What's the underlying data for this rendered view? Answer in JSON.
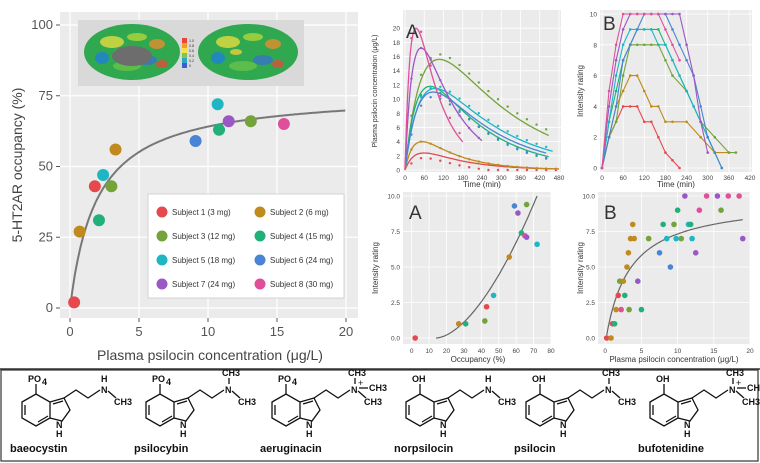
{
  "chart_data": [
    {
      "type": "scatter",
      "panel": "main",
      "xlabel": "Plasma psilocin concentration (μg/L)",
      "ylabel": "5-HT2AR occupancy (%)",
      "xlim": [
        0,
        20
      ],
      "ylim": [
        0,
        100
      ],
      "xticks": [
        0,
        5,
        10,
        15,
        20
      ],
      "yticks": [
        0,
        25,
        50,
        75,
        100
      ],
      "grid": true,
      "legend_position": "bottom-right",
      "series": [
        {
          "name": "Subject 1 (3 mg)",
          "color": "#e5484d",
          "points": [
            [
              0.3,
              2
            ],
            [
              1.8,
              43
            ]
          ]
        },
        {
          "name": "Subject 2 (6 mg)",
          "color": "#c08a1e",
          "points": [
            [
              0.7,
              27
            ],
            [
              3.3,
              56
            ]
          ]
        },
        {
          "name": "Subject 3 (12 mg)",
          "color": "#73a33a",
          "points": [
            [
              3.0,
              43
            ],
            [
              13.1,
              66
            ]
          ]
        },
        {
          "name": "Subject 4 (15 mg)",
          "color": "#22b07a",
          "points": [
            [
              2.1,
              31
            ],
            [
              10.8,
              63
            ]
          ]
        },
        {
          "name": "Subject 5 (18 mg)",
          "color": "#1fb6c4",
          "points": [
            [
              2.4,
              47
            ],
            [
              10.7,
              72
            ]
          ]
        },
        {
          "name": "Subject 6 (24 mg)",
          "color": "#4a84d4",
          "points": [
            [
              9.1,
              59
            ]
          ]
        },
        {
          "name": "Subject 7 (24 mg)",
          "color": "#9a58c4",
          "points": [
            [
              11.5,
              66
            ]
          ]
        },
        {
          "name": "Subject 8 (30 mg)",
          "color": "#e0509a",
          "points": [
            [
              15.5,
              65
            ]
          ]
        }
      ],
      "fit": {
        "model": "Emax",
        "occmax": 76.6,
        "ec50": 1.95
      }
    },
    {
      "type": "line",
      "panel": "A",
      "panel_label": "A",
      "xlabel": "Time (min)",
      "ylabel": "Plasma psilocin concentration (μg/L)",
      "xlim": [
        0,
        480
      ],
      "ylim": [
        0,
        22
      ],
      "xticks": [
        0,
        60,
        120,
        180,
        240,
        300,
        360,
        420,
        480
      ],
      "yticks": [
        0,
        2,
        4,
        6,
        8,
        10,
        12,
        14,
        16,
        18,
        20
      ],
      "series": [
        {
          "color": "#e5484d",
          "peak": 2.4,
          "tmax": 95,
          "end": 480
        },
        {
          "color": "#c08a1e",
          "peak": 4.0,
          "tmax": 85,
          "end": 480
        },
        {
          "color": "#73a33a",
          "peak": 15.6,
          "tmax": 170,
          "end": 450
        },
        {
          "color": "#22b07a",
          "peak": 11.8,
          "tmax": 125,
          "end": 450
        },
        {
          "color": "#1fb6c4",
          "peak": 11.5,
          "tmax": 150,
          "end": 460
        },
        {
          "color": "#4a84d4",
          "peak": 11.0,
          "tmax": 140,
          "end": 440
        },
        {
          "color": "#9a58c4",
          "peak": 17.2,
          "tmax": 80,
          "end": 240
        },
        {
          "color": "#e0509a",
          "peak": 20.0,
          "tmax": 55,
          "end": 180
        }
      ]
    },
    {
      "type": "line",
      "panel": "B",
      "panel_label": "B",
      "xlabel": "Time (min)",
      "ylabel": "Intensity rating",
      "xlim": [
        0,
        420
      ],
      "ylim": [
        0,
        10
      ],
      "xticks": [
        0,
        60,
        120,
        180,
        240,
        300,
        360,
        420
      ],
      "yticks": [
        0,
        2,
        4,
        6,
        8,
        10
      ],
      "series": [
        {
          "color": "#e5484d",
          "x": [
            0,
            20,
            40,
            60,
            80,
            100,
            120,
            140,
            160,
            180,
            200,
            220
          ],
          "y": [
            0,
            2,
            3,
            4,
            4,
            4,
            3,
            3,
            2,
            1,
            0.5,
            0
          ]
        },
        {
          "color": "#c08a1e",
          "x": [
            0,
            20,
            40,
            60,
            80,
            100,
            120,
            140,
            160,
            180,
            200,
            240,
            280,
            320,
            360
          ],
          "y": [
            0,
            2,
            4,
            5,
            6,
            6,
            5,
            4,
            4,
            3,
            3,
            3,
            2,
            1,
            1
          ]
        },
        {
          "color": "#73a33a",
          "x": [
            0,
            20,
            40,
            60,
            80,
            100,
            120,
            140,
            160,
            180,
            200,
            240,
            280,
            320,
            360,
            380
          ],
          "y": [
            0,
            2,
            3,
            6,
            8,
            8,
            8,
            8,
            8,
            7,
            6,
            5,
            3,
            2,
            1,
            1
          ]
        },
        {
          "color": "#22b07a",
          "x": [
            0,
            20,
            40,
            60,
            80,
            100,
            120,
            140,
            160,
            180,
            200,
            240,
            260,
            280,
            300,
            320,
            340
          ],
          "y": [
            0,
            3,
            5,
            7,
            8,
            9,
            9,
            9,
            9,
            8,
            7,
            5,
            4,
            3,
            2,
            1,
            0
          ]
        },
        {
          "color": "#1fb6c4",
          "x": [
            0,
            20,
            40,
            60,
            80,
            100,
            120,
            140,
            160,
            180,
            200,
            220,
            240,
            260,
            280,
            300,
            320
          ],
          "y": [
            0,
            3,
            6,
            8,
            9,
            9,
            9,
            9,
            8,
            8,
            7,
            6,
            5,
            4,
            3,
            2,
            1
          ]
        },
        {
          "color": "#4a84d4",
          "x": [
            0,
            20,
            40,
            60,
            80,
            100,
            120,
            140,
            160,
            180,
            200,
            220,
            240,
            260,
            280,
            300,
            320,
            340
          ],
          "y": [
            0,
            2,
            4,
            7,
            8,
            9,
            10,
            10,
            10,
            10,
            9,
            8,
            7,
            6,
            4,
            2,
            1,
            0
          ]
        },
        {
          "color": "#9a58c4",
          "x": [
            0,
            20,
            40,
            60,
            80,
            100,
            120,
            140,
            160,
            180,
            200,
            220,
            240,
            260,
            280,
            300
          ],
          "y": [
            0,
            4,
            7,
            9,
            10,
            10,
            10,
            10,
            10,
            10,
            10,
            10,
            8,
            6,
            3,
            1
          ]
        },
        {
          "color": "#e0509a",
          "x": [
            0,
            20,
            40,
            60,
            80,
            100,
            120,
            140,
            160,
            180,
            200,
            220
          ],
          "y": [
            0,
            5,
            8,
            10,
            10,
            10,
            10,
            10,
            10,
            9,
            8,
            7
          ]
        }
      ]
    },
    {
      "type": "scatter",
      "panel": "A2",
      "panel_label": "A",
      "xlabel": "Occupancy (%)",
      "ylabel": "Intensity rating",
      "xlim": [
        -5,
        80
      ],
      "ylim": [
        0,
        10
      ],
      "xticks": [
        0,
        10,
        20,
        30,
        40,
        50,
        60,
        70,
        80
      ],
      "yticks": [
        0.0,
        2.5,
        5.0,
        7.5,
        10.0
      ],
      "ytick_labels": [
        "0.0",
        "2.5",
        "5.0",
        "7.5",
        "10.0"
      ],
      "points": [
        {
          "x": 2,
          "y": 0,
          "color": "#e5484d"
        },
        {
          "x": 27,
          "y": 1,
          "color": "#c08a1e"
        },
        {
          "x": 31,
          "y": 1,
          "color": "#22b07a"
        },
        {
          "x": 42,
          "y": 1.2,
          "color": "#73a33a"
        },
        {
          "x": 43,
          "y": 2.2,
          "color": "#e5484d"
        },
        {
          "x": 47,
          "y": 3,
          "color": "#1fb6c4"
        },
        {
          "x": 56,
          "y": 5.7,
          "color": "#c08a1e"
        },
        {
          "x": 59,
          "y": 9.3,
          "color": "#4a84d4"
        },
        {
          "x": 63,
          "y": 7.4,
          "color": "#22b07a"
        },
        {
          "x": 65,
          "y": 7.2,
          "color": "#e0509a"
        },
        {
          "x": 66,
          "y": 7.1,
          "color": "#9a58c4"
        },
        {
          "x": 66,
          "y": 9.4,
          "color": "#73a33a"
        },
        {
          "x": 72,
          "y": 6.6,
          "color": "#1fb6c4"
        },
        {
          "x": 61,
          "y": 8.8,
          "color": "#9a58c4"
        }
      ]
    },
    {
      "type": "scatter",
      "panel": "B2",
      "panel_label": "B",
      "xlabel": "Plasma psilocin concentration (μg/L)",
      "ylabel": "Intensity rating",
      "xlim": [
        -1,
        20
      ],
      "ylim": [
        0,
        10
      ],
      "xticks": [
        0,
        5,
        10,
        15,
        20
      ],
      "yticks": [
        0.0,
        2.5,
        5.0,
        7.5,
        10.0
      ],
      "ytick_labels": [
        "0.0",
        "2.5",
        "5.0",
        "7.5",
        "10.0"
      ],
      "points": [
        {
          "x": 0.2,
          "y": 0,
          "color": "#e5484d"
        },
        {
          "x": 0.8,
          "y": 0,
          "color": "#c08a1e"
        },
        {
          "x": 1.0,
          "y": 1,
          "color": "#e5484d"
        },
        {
          "x": 1.3,
          "y": 1,
          "color": "#22b07a"
        },
        {
          "x": 1.5,
          "y": 2,
          "color": "#c08a1e"
        },
        {
          "x": 1.8,
          "y": 3,
          "color": "#e5484d"
        },
        {
          "x": 2.0,
          "y": 4,
          "color": "#73a33a"
        },
        {
          "x": 2.2,
          "y": 2,
          "color": "#e0509a"
        },
        {
          "x": 2.5,
          "y": 4,
          "color": "#c08a1e"
        },
        {
          "x": 2.7,
          "y": 3,
          "color": "#22b07a"
        },
        {
          "x": 3.0,
          "y": 5,
          "color": "#c08a1e"
        },
        {
          "x": 3.2,
          "y": 6,
          "color": "#c08a1e"
        },
        {
          "x": 3.5,
          "y": 7,
          "color": "#c08a1e"
        },
        {
          "x": 3.8,
          "y": 8,
          "color": "#c08a1e"
        },
        {
          "x": 3.3,
          "y": 2,
          "color": "#73a33a"
        },
        {
          "x": 4.0,
          "y": 7,
          "color": "#c08a1e"
        },
        {
          "x": 4.5,
          "y": 4,
          "color": "#9a58c4"
        },
        {
          "x": 5.0,
          "y": 2,
          "color": "#22b07a"
        },
        {
          "x": 6.0,
          "y": 7,
          "color": "#73a33a"
        },
        {
          "x": 7.5,
          "y": 6,
          "color": "#4a84d4"
        },
        {
          "x": 8.0,
          "y": 8,
          "color": "#22b07a"
        },
        {
          "x": 8.5,
          "y": 7,
          "color": "#1fb6c4"
        },
        {
          "x": 9.0,
          "y": 5,
          "color": "#4a84d4"
        },
        {
          "x": 9.5,
          "y": 8,
          "color": "#73a33a"
        },
        {
          "x": 10.0,
          "y": 9,
          "color": "#22b07a"
        },
        {
          "x": 10.5,
          "y": 7,
          "color": "#73a33a"
        },
        {
          "x": 11.0,
          "y": 10,
          "color": "#9a58c4"
        },
        {
          "x": 11.5,
          "y": 8,
          "color": "#1fb6c4"
        },
        {
          "x": 12.0,
          "y": 7,
          "color": "#1fb6c4"
        },
        {
          "x": 12.5,
          "y": 6,
          "color": "#9a58c4"
        },
        {
          "x": 13.0,
          "y": 9,
          "color": "#e0509a"
        },
        {
          "x": 14.0,
          "y": 10,
          "color": "#e0509a"
        },
        {
          "x": 15.5,
          "y": 10,
          "color": "#9a58c4"
        },
        {
          "x": 16.0,
          "y": 9,
          "color": "#73a33a"
        },
        {
          "x": 17.0,
          "y": 10,
          "color": "#e0509a"
        },
        {
          "x": 18.5,
          "y": 10,
          "color": "#e0509a"
        },
        {
          "x": 19.0,
          "y": 7,
          "color": "#9a58c4"
        },
        {
          "x": 11.8,
          "y": 8,
          "color": "#22b07a"
        },
        {
          "x": 9.8,
          "y": 7,
          "color": "#1fb6c4"
        }
      ],
      "fit": {
        "model": "Emax",
        "emax": 10.2,
        "ec50": 3.2
      }
    }
  ],
  "molecules": [
    {
      "name": "baeocystin",
      "sub": "PO4",
      "amine": "NHCH3"
    },
    {
      "name": "psilocybin",
      "sub": "PO4",
      "amine": "N(CH3)2"
    },
    {
      "name": "aeruginacin",
      "sub": "PO4",
      "amine": "N+(CH3)3"
    },
    {
      "name": "norpsilocin",
      "sub": "OH",
      "amine": "NHCH3"
    },
    {
      "name": "psilocin",
      "sub": "OH",
      "amine": "N(CH3)2"
    },
    {
      "name": "bufotenidine",
      "sub": "OH",
      "amine": "N+(CH3)3"
    }
  ],
  "atom_labels": {
    "ring_n": "N",
    "ring_h": "H",
    "amine_n": "N",
    "amine_h": "H",
    "ch3": "CH3",
    "ch3_sub": "3",
    "c": "CH",
    "plus": "+",
    "po4": "PO",
    "po4_sub": "4",
    "oh": "OH"
  },
  "brain_colorbar_ticks": [
    "1.0",
    "0.8",
    "0.6",
    "0.4",
    "0.2",
    "0"
  ]
}
